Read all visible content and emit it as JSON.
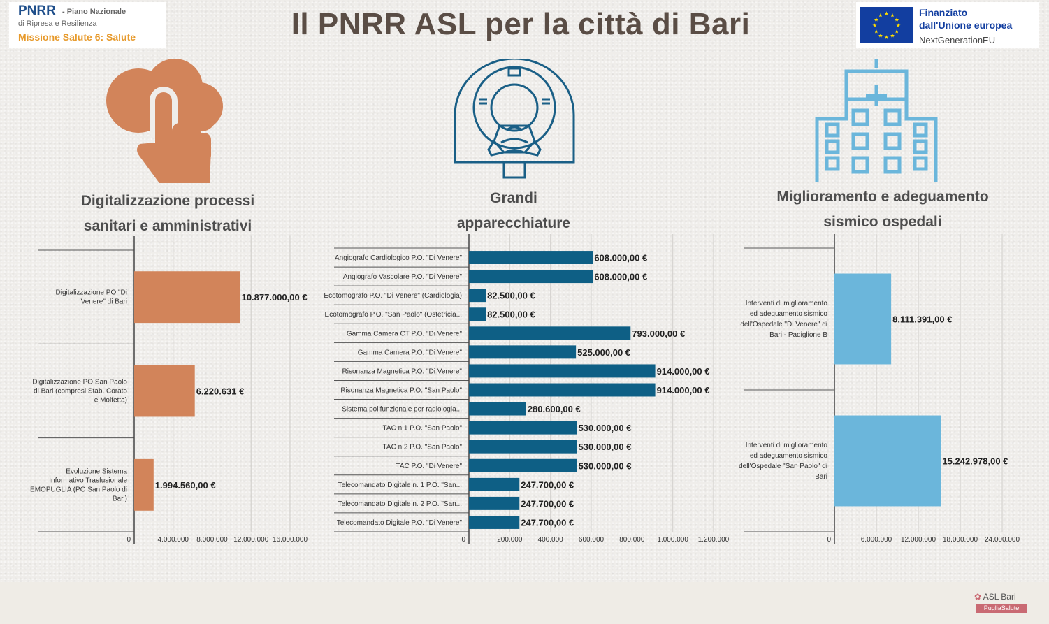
{
  "header": {
    "title": "Il PNRR ASL per la città di Bari",
    "pnrr_logo": {
      "name": "PNRR",
      "subtitle1": "- Piano Nazionale",
      "subtitle2": "di Ripresa e Resilienza",
      "mission": "Missione Salute 6: Salute"
    },
    "eu_logo": {
      "line1": "Finanziato",
      "line2": "dall'Unione europea",
      "line3": "NextGenerationEU"
    }
  },
  "sections": [
    {
      "title_line1": "Digitalizzazione processi",
      "title_line2": "sanitari e amministrativi",
      "icon": "cloud-touch-icon"
    },
    {
      "title_line1": "Grandi",
      "title_line2": "apparecchiature",
      "icon": "mri-scanner-icon"
    },
    {
      "title_line1": "Miglioramento e adeguamento",
      "title_line2": "sismico  ospedali",
      "icon": "hospital-building-icon"
    }
  ],
  "colors": {
    "digital": "#d2845a",
    "equipment": "#0e5f85",
    "seismic": "#6bb6db",
    "title": "#5a4d45"
  },
  "chart_data": [
    {
      "type": "bar",
      "orientation": "horizontal",
      "categories": [
        "Digitalizzazione PO \"Di Venere\" di Bari",
        "Digitalizzazione PO San Paolo di Bari (compresi Stab. Corato e Molfetta)",
        "Evoluzione Sistema Informativo Trasfusionale EMOPUGLIA (PO San Paolo di Bari)"
      ],
      "category_lines": [
        [
          "Digitalizzazione PO \"Di",
          "Venere\" di Bari"
        ],
        [
          "Digitalizzazione PO San Paolo",
          "di Bari (compresi Stab. Corato",
          "e Molfetta)"
        ],
        [
          "Evoluzione Sistema",
          "Informativo Trasfusionale",
          "EMOPUGLIA (PO San Paolo di",
          "Bari)"
        ]
      ],
      "values": [
        10877000,
        6220631,
        1994560
      ],
      "value_labels": [
        "10.877.000,00 €",
        "6.220.631 €",
        "1.994.560,00 €"
      ],
      "xlim": [
        0,
        16000000
      ],
      "ticks": [
        "0",
        "4.000.000",
        "8.000.000",
        "12.000.000",
        "16.000.000"
      ],
      "grid": true
    },
    {
      "type": "bar",
      "orientation": "horizontal",
      "categories": [
        "Angiografo Cardiologico P.O. \"Di Venere\"",
        "Angiografo Vascolare P.O. \"Di Venere\"",
        "Ecotomografo P.O. \"Di Venere\" (Cardiologia)",
        "Ecotomografo P.O. \"San Paolo\" (Ostetricia...",
        "Gamma Camera CT P.O. \"Di Venere\"",
        "Gamma Camera P.O. \"Di Venere\"",
        "Risonanza Magnetica P.O. \"Di Venere\"",
        "Risonanza Magnetica P.O. \"San Paolo\"",
        "Sistema polifunzionale per radiologia...",
        "TAC n.1 P.O. \"San Paolo\"",
        "TAC n.2 P.O. \"San Paolo\"",
        "TAC P.O. \"Di Venere\"",
        "Telecomandato Digitale n. 1 P.O. \"San...",
        "Telecomandato Digitale n. 2 P.O. \"San...",
        "Telecomandato Digitale P.O. \"Di Venere\""
      ],
      "values": [
        608000,
        608000,
        82500,
        82500,
        793000,
        525000,
        914000,
        914000,
        280600,
        530000,
        530000,
        530000,
        247700,
        247700,
        247700
      ],
      "value_labels": [
        "608.000,00 €",
        "608.000,00 €",
        "82.500,00 €",
        "82.500,00 €",
        "793.000,00 €",
        "525.000,00 €",
        "914.000,00 €",
        "914.000,00 €",
        "280.600,00 €",
        "530.000,00 €",
        "530.000,00 €",
        "530.000,00 €",
        "247.700,00 €",
        "247.700,00 €",
        "247.700,00 €"
      ],
      "xlim": [
        0,
        1200000
      ],
      "ticks": [
        "0",
        "200.000",
        "400.000",
        "600.000",
        "800.000",
        "1.000.000",
        "1.200.000"
      ],
      "grid": true
    },
    {
      "type": "bar",
      "orientation": "horizontal",
      "categories": [
        "Interventi di miglioramento ed adeguamento sismico dell'Ospedale \"Di Venere\" di Bari - Padiglione B",
        "Interventi di miglioramento ed adeguamento sismico dell'Ospedale \"San Paolo\" di Bari"
      ],
      "category_lines": [
        [
          "Interventi di miglioramento",
          "ed adeguamento sismico",
          "dell'Ospedale \"Di Venere\" di",
          "Bari - Padiglione B"
        ],
        [
          "Interventi di miglioramento",
          "ed adeguamento sismico",
          "dell'Ospedale \"San Paolo\" di",
          "Bari"
        ]
      ],
      "values": [
        8111391,
        15242978
      ],
      "value_labels": [
        "8.111.391,00 €",
        "15.242.978,00 €"
      ],
      "xlim": [
        0,
        24000000
      ],
      "ticks": [
        "0",
        "6.000.000",
        "12.000.000",
        "18.000.000",
        "24.000.000"
      ],
      "grid": true
    }
  ],
  "footer": {
    "asl_logo_top": "ASL Bari",
    "asl_logo_bottom": "PugliaSalute"
  }
}
